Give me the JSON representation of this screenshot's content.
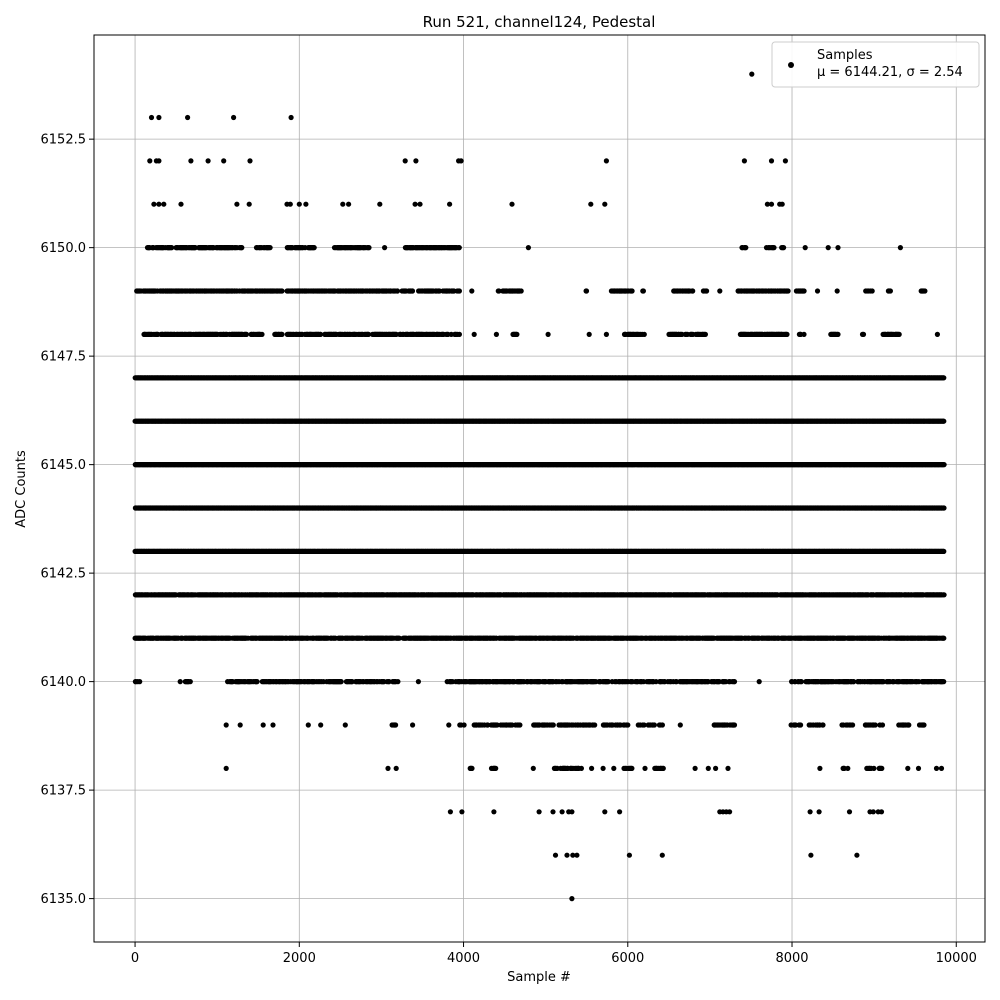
{
  "chart_data": {
    "type": "scatter",
    "title": "Run 521, channel124, Pedestal",
    "xlabel": "Sample #",
    "ylabel": "ADC Counts",
    "xlim": [
      -500,
      10350
    ],
    "ylim": [
      6134.0,
      6154.9
    ],
    "xticks": [
      0,
      2000,
      4000,
      6000,
      8000,
      10000
    ],
    "yticks": [
      6135.0,
      6137.5,
      6140.0,
      6142.5,
      6145.0,
      6147.5,
      6150.0,
      6152.5
    ],
    "xtick_labels": [
      "0",
      "2000",
      "4000",
      "6000",
      "8000",
      "10000"
    ],
    "ytick_labels": [
      "6135.0",
      "6137.5",
      "6140.0",
      "6142.5",
      "6145.0",
      "6147.5",
      "6150.0",
      "6152.5"
    ],
    "grid": true,
    "legend_position": "top-right",
    "marker_color": "#000000",
    "series": [
      {
        "name": "Samples",
        "stats_label": "μ = 6144.21, σ = 2.54",
        "mean": 6144.21,
        "sigma": 2.54,
        "n_samples": 9850,
        "level_ranges": [
          {
            "y": 6154,
            "x": [
              7510
            ]
          },
          {
            "y": 6153,
            "x": [
              200,
              290,
              640,
              1200,
              1900
            ]
          },
          {
            "y": 6152,
            "x": [
              180,
              260,
              290,
              680,
              890,
              1080,
              1400,
              3290,
              3420,
              3940,
              3970,
              5740,
              7420,
              7750,
              7920
            ]
          },
          {
            "y": 6151,
            "x": [
              230,
              290,
              350,
              560,
              1240,
              1390,
              1850,
              1890,
              2000,
              2080,
              2530,
              2600,
              2980,
              3410,
              3470,
              3830,
              4590,
              5550,
              5720,
              7700,
              7750,
              7850,
              7880
            ]
          },
          {
            "y": 6150,
            "ranges": [
              [
                150,
                450
              ],
              [
                500,
                1300
              ],
              [
                1460,
                1650
              ],
              [
                1850,
                2200
              ],
              [
                2420,
                2850
              ],
              [
                3020,
                3050
              ],
              [
                3290,
                3960
              ],
              [
                4790,
                4800
              ],
              [
                7370,
                7440
              ],
              [
                7680,
                7790
              ],
              [
                7870,
                7900
              ],
              [
                8160,
                8170
              ],
              [
                8440,
                8450
              ],
              [
                8560,
                8570
              ],
              [
                9320,
                9330
              ]
            ]
          },
          {
            "y": 6149,
            "ranges": [
              [
                20,
                1800
              ],
              [
                1850,
                3300
              ],
              [
                3330,
                3380
              ],
              [
                3450,
                3950
              ],
              [
                4100,
                4110
              ],
              [
                4420,
                4700
              ],
              [
                5480,
                5500
              ],
              [
                5800,
                6050
              ],
              [
                6180,
                6200
              ],
              [
                6550,
                6800
              ],
              [
                6910,
                6960
              ],
              [
                7120,
                7130
              ],
              [
                7340,
                7950
              ],
              [
                8050,
                8160
              ],
              [
                8310,
                8320
              ],
              [
                8550,
                8560
              ],
              [
                8880,
                8980
              ],
              [
                9170,
                9210
              ],
              [
                9570,
                9620
              ]
            ]
          },
          {
            "y": 6148,
            "ranges": [
              [
                90,
                1550
              ],
              [
                1700,
                1800
              ],
              [
                1850,
                3950
              ],
              [
                4130,
                4140
              ],
              [
                4400,
                4410
              ],
              [
                4600,
                4660
              ],
              [
                5030,
                5040
              ],
              [
                5530,
                5540
              ],
              [
                5740,
                5750
              ],
              [
                5950,
                6200
              ],
              [
                6500,
                6950
              ],
              [
                7360,
                7950
              ],
              [
                8080,
                8150
              ],
              [
                8470,
                8560
              ],
              [
                8850,
                8870
              ],
              [
                9100,
                9300
              ],
              [
                9770,
                9780
              ]
            ]
          },
          {
            "y": 6147,
            "ranges": [
              [
                0,
                9850
              ]
            ],
            "density": 1.0
          },
          {
            "y": 6146,
            "ranges": [
              [
                0,
                9850
              ]
            ],
            "density": 1.0
          },
          {
            "y": 6145,
            "ranges": [
              [
                0,
                9850
              ]
            ],
            "density": 1.0
          },
          {
            "y": 6144,
            "ranges": [
              [
                0,
                9850
              ]
            ],
            "density": 1.0
          },
          {
            "y": 6143,
            "ranges": [
              [
                0,
                9850
              ]
            ],
            "density": 1.0
          },
          {
            "y": 6142,
            "ranges": [
              [
                0,
                9850
              ]
            ],
            "density": 0.9
          },
          {
            "y": 6141,
            "ranges": [
              [
                0,
                9850
              ]
            ],
            "density": 0.8
          },
          {
            "y": 6140,
            "ranges": [
              [
                0,
                60
              ],
              [
                540,
                670
              ],
              [
                1100,
                3200
              ],
              [
                3450,
                3460
              ],
              [
                3800,
                7300
              ],
              [
                7600,
                7610
              ],
              [
                7950,
                9850
              ]
            ],
            "density": 0.55
          },
          {
            "y": 6139,
            "ranges": [
              [
                1110,
                1120
              ],
              [
                1280,
                1290
              ],
              [
                1520,
                1570
              ],
              [
                1680,
                1690
              ],
              [
                2110,
                2120
              ],
              [
                2260,
                2270
              ],
              [
                2560,
                2570
              ],
              [
                3120,
                3170
              ],
              [
                3380,
                3390
              ],
              [
                3820,
                3830
              ],
              [
                3950,
                4020
              ],
              [
                4110,
                4700
              ],
              [
                4850,
                5600
              ],
              [
                5700,
                6000
              ],
              [
                6100,
                6450
              ],
              [
                6640,
                6650
              ],
              [
                7050,
                7300
              ],
              [
                7980,
                8100
              ],
              [
                8200,
                8400
              ],
              [
                8600,
                8750
              ],
              [
                8890,
                9100
              ],
              [
                9300,
                9450
              ],
              [
                9550,
                9620
              ]
            ],
            "density": 0.45
          },
          {
            "y": 6138,
            "ranges": [
              [
                1110,
                1120
              ],
              [
                3080,
                3090
              ],
              [
                3180,
                3190
              ],
              [
                4070,
                4110
              ],
              [
                4340,
                4390
              ],
              [
                4850,
                4860
              ],
              [
                5090,
                5450
              ],
              [
                5560,
                5570
              ],
              [
                5700,
                5710
              ],
              [
                5830,
                5840
              ],
              [
                5950,
                6050
              ],
              [
                6210,
                6220
              ],
              [
                6320,
                6450
              ],
              [
                6820,
                6830
              ],
              [
                6980,
                6990
              ],
              [
                7070,
                7080
              ],
              [
                7220,
                7230
              ],
              [
                8340,
                8350
              ],
              [
                8620,
                8680
              ],
              [
                8900,
                9000
              ],
              [
                9050,
                9090
              ],
              [
                9410,
                9420
              ],
              [
                9540,
                9550
              ],
              [
                9760,
                9770
              ],
              [
                9820,
                9830
              ]
            ],
            "density": 0.6
          },
          {
            "y": 6137,
            "x": [
              3840,
              3980,
              4370,
              4920,
              5090,
              5200,
              5280,
              5320,
              5720,
              5900,
              7120,
              7160,
              7200,
              7240,
              8220,
              8330,
              8700,
              8950,
              8990,
              9050,
              9090
            ]
          },
          {
            "y": 6136,
            "x": [
              5120,
              5260,
              5330,
              5380,
              6020,
              6420,
              8230,
              8790
            ]
          },
          {
            "y": 6135,
            "x": [
              5320
            ]
          }
        ]
      }
    ]
  }
}
